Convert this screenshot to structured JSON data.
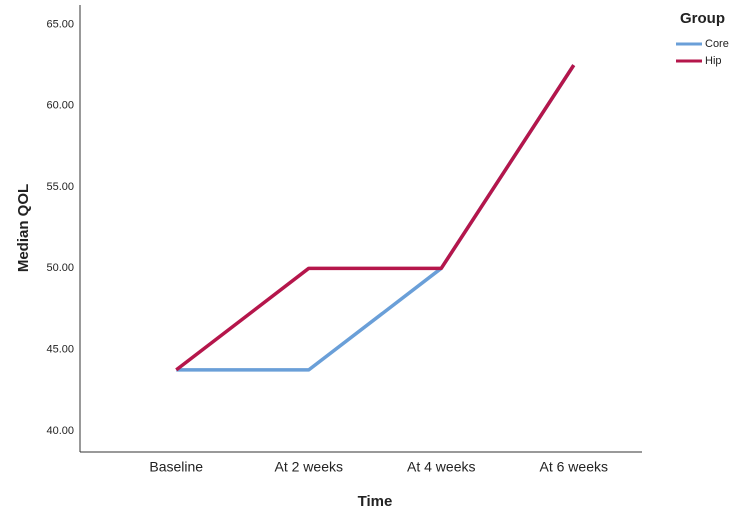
{
  "chart_data": {
    "type": "line",
    "x_label": "Time",
    "y_label": "Median QOL",
    "legend_title": "Group",
    "legend": "right",
    "categories": [
      "Baseline",
      "At 2 weeks",
      "At 4 weeks",
      "At 6 weeks"
    ],
    "series": [
      {
        "name": "Core",
        "color": "#6a9fd8",
        "values": [
          43.75,
          43.75,
          50,
          62.5
        ]
      },
      {
        "name": "Hip",
        "color": "#b5164b",
        "values": [
          43.75,
          50,
          50,
          62.5
        ]
      }
    ],
    "ylim": [
      38.7,
      66.2
    ],
    "yticks": [
      {
        "value": 40,
        "label": "40.00"
      },
      {
        "value": 45,
        "label": "45.00"
      },
      {
        "value": 50,
        "label": "50.00"
      },
      {
        "value": 55,
        "label": "55.00"
      },
      {
        "value": 60,
        "label": "60.00"
      },
      {
        "value": 65,
        "label": "65.00"
      }
    ]
  }
}
